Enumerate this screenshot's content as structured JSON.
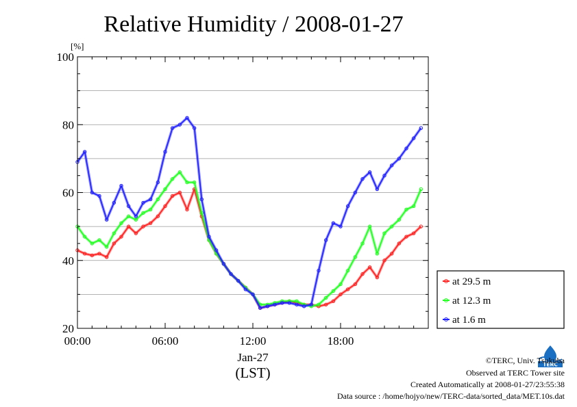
{
  "chart_data": {
    "type": "line",
    "title": "Relative Humidity / 2008-01-27",
    "ylabel": "[%]",
    "ylim": [
      20,
      100
    ],
    "yticks": [
      "20",
      "40",
      "60",
      "80",
      "100"
    ],
    "xlim": [
      0,
      24
    ],
    "xticks": [
      {
        "value": 0,
        "label": "00:00"
      },
      {
        "value": 6,
        "label": "06:00"
      },
      {
        "value": 12,
        "label": "12:00"
      },
      {
        "value": 18,
        "label": "18:00"
      }
    ],
    "date_label": "Jan-27",
    "xlabel": "(LST)",
    "grid": true,
    "legend_position": "right",
    "series": [
      {
        "name": "at 29.5 m",
        "color": "#ff2020",
        "x": [
          0,
          0.5,
          1,
          1.5,
          2,
          2.5,
          3,
          3.5,
          4,
          4.5,
          5,
          5.5,
          6,
          6.5,
          7,
          7.5,
          8,
          8.5,
          9,
          9.5,
          10,
          10.5,
          11,
          11.5,
          12,
          12.5,
          13,
          13.5,
          14,
          14.5,
          15,
          15.5,
          16,
          16.5,
          17,
          17.5,
          18,
          18.5,
          19,
          19.5,
          20,
          20.5,
          21,
          21.5,
          22,
          22.5,
          23,
          23.5
        ],
        "values": [
          43,
          42,
          41.5,
          42,
          41,
          45,
          47,
          50,
          48,
          50,
          51,
          53,
          56,
          59,
          60,
          55,
          61,
          53,
          46,
          42,
          39,
          36,
          34,
          32,
          30,
          26,
          26.5,
          27,
          27.5,
          28,
          27.5,
          27,
          27,
          26.5,
          27,
          28,
          30,
          31.5,
          33,
          36,
          38,
          35,
          40,
          42,
          45,
          47,
          48,
          50
        ]
      },
      {
        "name": "at 12.3 m",
        "color": "#20ff20",
        "x": [
          0,
          0.5,
          1,
          1.5,
          2,
          2.5,
          3,
          3.5,
          4,
          4.5,
          5,
          5.5,
          6,
          6.5,
          7,
          7.5,
          8,
          8.5,
          9,
          9.5,
          10,
          10.5,
          11,
          11.5,
          12,
          12.5,
          13,
          13.5,
          14,
          14.5,
          15,
          15.5,
          16,
          16.5,
          17,
          17.5,
          18,
          18.5,
          19,
          19.5,
          20,
          20.5,
          21,
          21.5,
          22,
          22.5,
          23,
          23.5
        ],
        "values": [
          50,
          47,
          45,
          46,
          44,
          48,
          51,
          53,
          52,
          54,
          55,
          58,
          61,
          64,
          66,
          63,
          63,
          54,
          46,
          42,
          39,
          36,
          34,
          32,
          30,
          27,
          27,
          27.5,
          28,
          28,
          28,
          27,
          26.5,
          27,
          29,
          31,
          33,
          37,
          41,
          45,
          50,
          42,
          48,
          50,
          52,
          55,
          56,
          61
        ]
      },
      {
        "name": "at 1.6 m",
        "color": "#2020ff",
        "x": [
          0,
          0.5,
          1,
          1.5,
          2,
          2.5,
          3,
          3.5,
          4,
          4.5,
          5,
          5.5,
          6,
          6.5,
          7,
          7.5,
          8,
          8.5,
          9,
          9.5,
          10,
          10.5,
          11,
          11.5,
          12,
          12.5,
          13,
          13.5,
          14,
          14.5,
          15,
          15.5,
          16,
          16.5,
          17,
          17.5,
          18,
          18.5,
          19,
          19.5,
          20,
          20.5,
          21,
          21.5,
          22,
          22.5,
          23,
          23.5
        ],
        "values": [
          69,
          72,
          60,
          59,
          52,
          57,
          62,
          56,
          53,
          57,
          58,
          63,
          72,
          79,
          80,
          82,
          79,
          58,
          47,
          43,
          39,
          36,
          34,
          31.5,
          30,
          26,
          26.5,
          27,
          27.5,
          27.5,
          27,
          26.5,
          27,
          37,
          46,
          51,
          50,
          56,
          60,
          64,
          66,
          61,
          65,
          68,
          70,
          73,
          76,
          79
        ]
      }
    ]
  },
  "credits": {
    "copyright": "©TERC, Univ. Tsukuba",
    "site": "Observed at TERC Tower site",
    "created": "Created Automatically at 2008-01-27/23:55:38",
    "source": "Data source : /home/hojyo/new/TERC-data/sorted_data/MET.10s.dat"
  },
  "logo": {
    "text": "TERC",
    "color": "#1a6fc2"
  }
}
